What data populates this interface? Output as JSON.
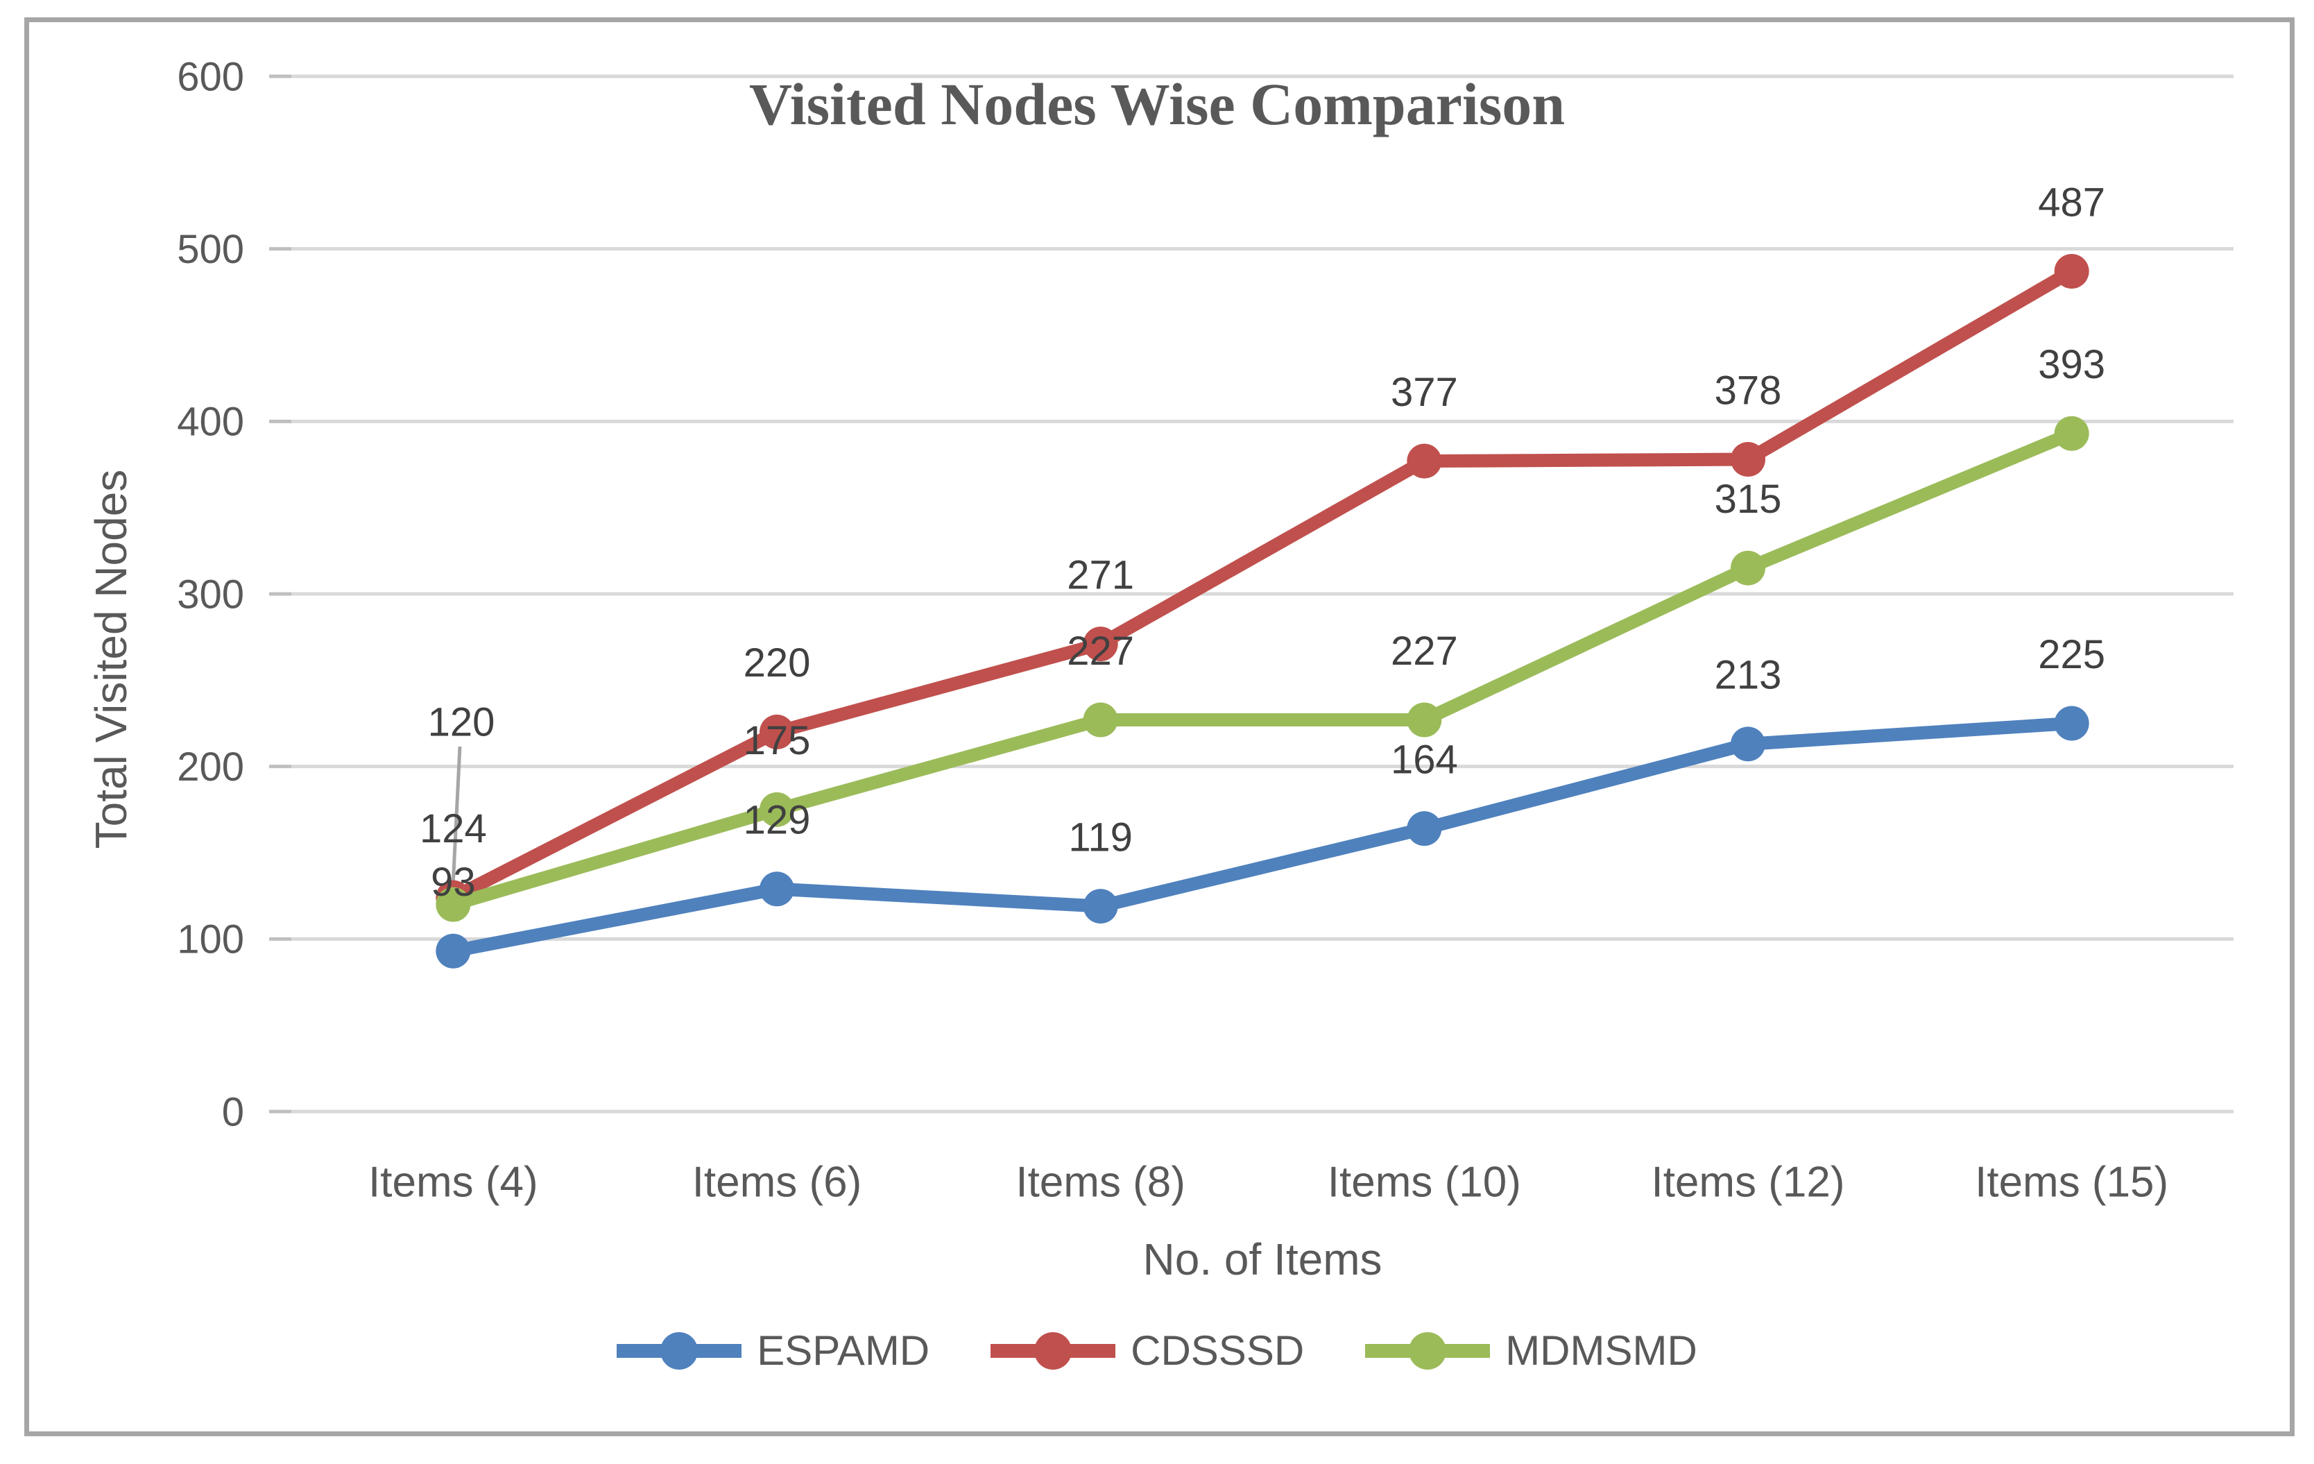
{
  "chart_data": {
    "type": "line",
    "title": "Visited Nodes Wise Comparison",
    "xlabel": "No. of Items",
    "ylabel": "Total Visited Nodes",
    "categories": [
      "Items (4)",
      "Items (6)",
      "Items (8)",
      "Items (10)",
      "Items (12)",
      "Items (15)"
    ],
    "series": [
      {
        "name": "ESPAMD",
        "color": "#4F81BD",
        "values": [
          93,
          129,
          119,
          164,
          213,
          225
        ]
      },
      {
        "name": "CDSSSD",
        "color": "#C0504D",
        "values": [
          124,
          220,
          271,
          377,
          378,
          487
        ]
      },
      {
        "name": "MDMSMD",
        "color": "#9BBB59",
        "values": [
          120,
          175,
          227,
          227,
          315,
          393
        ]
      }
    ],
    "ylim": [
      0,
      600
    ],
    "ytick_step": 100,
    "yticks": [
      0,
      100,
      200,
      300,
      400,
      500,
      600
    ],
    "grid": true,
    "legend_position": "bottom",
    "data_labels": "above",
    "label_overrides": [
      {
        "series_index": 2,
        "point_index": 0,
        "label_x": 665,
        "label_y": 1040,
        "leader_line": true
      }
    ]
  },
  "colors": {
    "background": "#FFFFFF",
    "frame_border": "#A6A6A6",
    "gridline": "#D9D9D9",
    "tick_mark": "#BFBFBF",
    "axis_text": "#595959",
    "title_text": "#595959",
    "data_label_text": "#404040",
    "leader_line": "#A6A6A6"
  }
}
